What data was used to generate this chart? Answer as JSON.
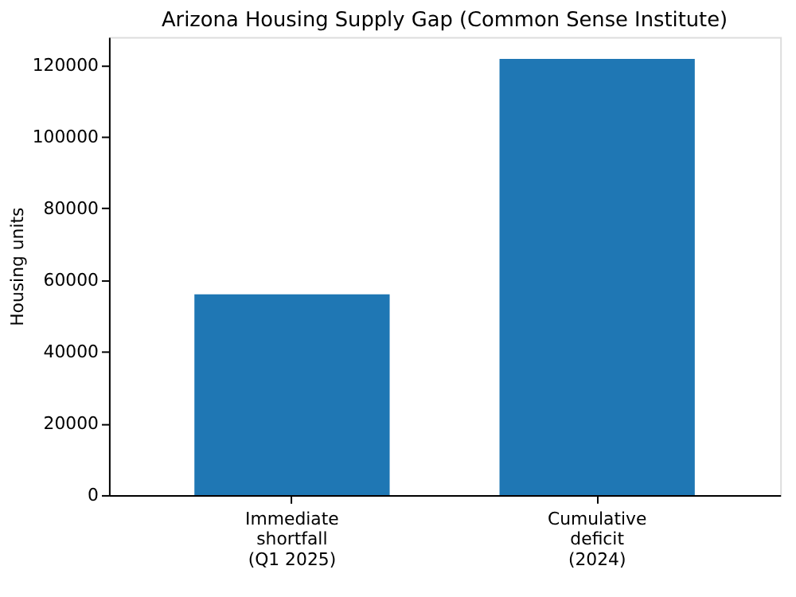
{
  "chart_data": {
    "type": "bar",
    "title": "Arizona Housing Supply Gap (Common Sense Institute)",
    "ylabel": "Housing units",
    "categories": [
      "Immediate\nshortfall\n(Q1 2025)",
      "Cumulative\ndeficit\n(2024)"
    ],
    "values": [
      56000,
      121700
    ],
    "color": "#1f77b4",
    "ylim": [
      0,
      127800
    ],
    "yticks": [
      0,
      20000,
      40000,
      60000,
      80000,
      100000,
      120000
    ],
    "grid": false
  }
}
